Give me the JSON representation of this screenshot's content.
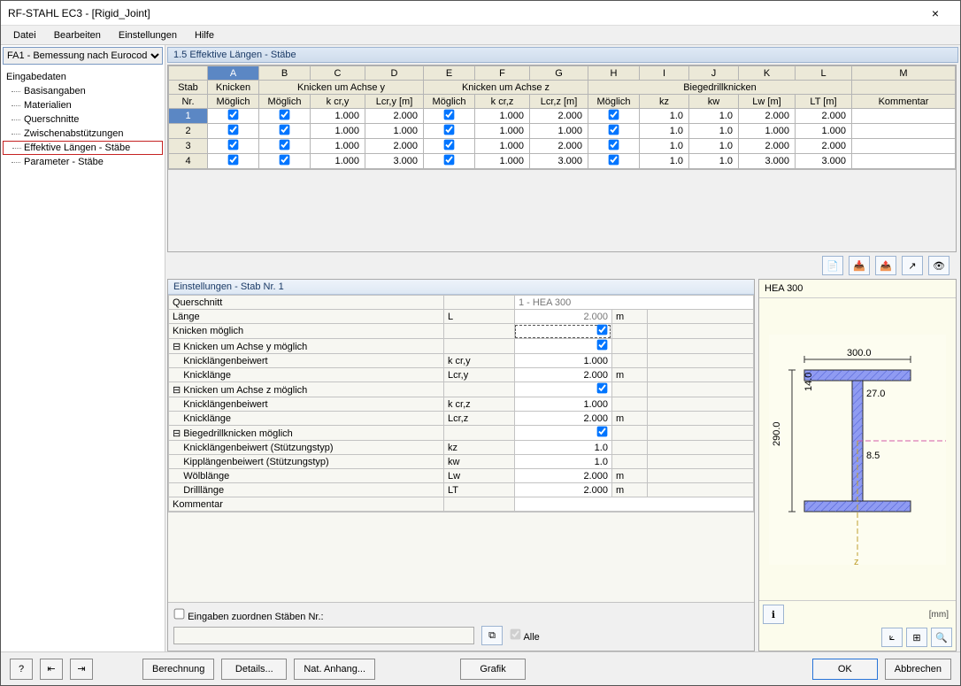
{
  "window": {
    "title": "RF-STAHL EC3 - [Rigid_Joint]"
  },
  "menu": {
    "items": [
      "Datei",
      "Bearbeiten",
      "Einstellungen",
      "Hilfe"
    ]
  },
  "sidebar": {
    "combo": "FA1 - Bemessung nach Eurocod",
    "root": "Eingabedaten",
    "items": [
      "Basisangaben",
      "Materialien",
      "Querschnitte",
      "Zwischenabstützungen",
      "Effektive Längen - Stäbe",
      "Parameter - Stäbe"
    ],
    "selected_index": 4
  },
  "section_title": "1.5 Effektive Längen - Stäbe",
  "grid": {
    "letter_cols": [
      "A",
      "B",
      "C",
      "D",
      "E",
      "F",
      "G",
      "H",
      "I",
      "J",
      "K",
      "L",
      "M"
    ],
    "group_headers": {
      "stab": "Stab",
      "knicken": "Knicken",
      "achse_y": "Knicken um Achse y",
      "achse_z": "Knicken um Achse z",
      "biegedrill": "Biegedrillknicken"
    },
    "sub_headers": {
      "nr": "Nr.",
      "moeglich": "Möglich",
      "kcry": "k cr,y",
      "lcry": "Lcr,y [m]",
      "kcrz": "k cr,z",
      "lcrz": "Lcr,z [m]",
      "kz": "kz",
      "kw": "kw",
      "lw": "Lw [m]",
      "lt": "LT [m]",
      "kommentar": "Kommentar"
    },
    "rows": [
      {
        "nr": 1,
        "a": true,
        "b": true,
        "c": "1.000",
        "d": "2.000",
        "e": true,
        "f": "1.000",
        "g": "2.000",
        "h": true,
        "i": "1.0",
        "j": "1.0",
        "k": "2.000",
        "l": "2.000",
        "m": "",
        "sel": true
      },
      {
        "nr": 2,
        "a": true,
        "b": true,
        "c": "1.000",
        "d": "1.000",
        "e": true,
        "f": "1.000",
        "g": "1.000",
        "h": true,
        "i": "1.0",
        "j": "1.0",
        "k": "1.000",
        "l": "1.000",
        "m": ""
      },
      {
        "nr": 3,
        "a": true,
        "b": true,
        "c": "1.000",
        "d": "2.000",
        "e": true,
        "f": "1.000",
        "g": "2.000",
        "h": true,
        "i": "1.0",
        "j": "1.0",
        "k": "2.000",
        "l": "2.000",
        "m": ""
      },
      {
        "nr": 4,
        "a": true,
        "b": true,
        "c": "1.000",
        "d": "3.000",
        "e": true,
        "f": "1.000",
        "g": "3.000",
        "h": true,
        "i": "1.0",
        "j": "1.0",
        "k": "3.000",
        "l": "3.000",
        "m": ""
      }
    ]
  },
  "details": {
    "title": "Einstellungen - Stab Nr. 1",
    "rows": [
      {
        "type": "kv",
        "label": "Querschnitt",
        "sym": "",
        "val": "1 - HEA 300",
        "unit": "",
        "ro": true,
        "wide": true
      },
      {
        "type": "kv",
        "label": "Länge",
        "sym": "L",
        "val": "2.000",
        "unit": "m",
        "ro": true
      },
      {
        "type": "chk",
        "label": "Knicken möglich",
        "checked": true,
        "dashed": true
      },
      {
        "type": "grp",
        "label": "Knicken um Achse y möglich",
        "checked": true
      },
      {
        "type": "kv",
        "label": "Knicklängenbeiwert",
        "sym": "k cr,y",
        "val": "1.000",
        "unit": "",
        "indent": true
      },
      {
        "type": "kv",
        "label": "Knicklänge",
        "sym": "Lcr,y",
        "val": "2.000",
        "unit": "m",
        "indent": true
      },
      {
        "type": "grp",
        "label": "Knicken um Achse z möglich",
        "checked": true
      },
      {
        "type": "kv",
        "label": "Knicklängenbeiwert",
        "sym": "k cr,z",
        "val": "1.000",
        "unit": "",
        "indent": true
      },
      {
        "type": "kv",
        "label": "Knicklänge",
        "sym": "Lcr,z",
        "val": "2.000",
        "unit": "m",
        "indent": true
      },
      {
        "type": "grp",
        "label": "Biegedrillknicken möglich",
        "checked": true
      },
      {
        "type": "kv",
        "label": "Knicklängenbeiwert (Stützungstyp)",
        "sym": "kz",
        "val": "1.0",
        "unit": "",
        "indent": true
      },
      {
        "type": "kv",
        "label": "Kipplängenbeiwert (Stützungstyp)",
        "sym": "kw",
        "val": "1.0",
        "unit": "",
        "indent": true
      },
      {
        "type": "kv",
        "label": "Wölblänge",
        "sym": "Lw",
        "val": "2.000",
        "unit": "m",
        "indent": true
      },
      {
        "type": "kv",
        "label": "Drilllänge",
        "sym": "LT",
        "val": "2.000",
        "unit": "m",
        "indent": true
      },
      {
        "type": "kv",
        "label": "Kommentar",
        "sym": "",
        "val": "",
        "unit": "",
        "wide": true
      }
    ],
    "assign_label": "Eingaben zuordnen Stäben Nr.:",
    "alle": "Alle"
  },
  "profile": {
    "title": "HEA 300",
    "unit_label": "[mm]",
    "dims": {
      "width": "300.0",
      "height": "290.0",
      "tf": "14.0",
      "tw": "8.5",
      "r": "27.0"
    },
    "colors": {
      "fill": "#8f9bf2",
      "hatch": "#4a5ad2",
      "outline": "#2b2b2b",
      "axis_y": "#d45aa8",
      "axis_z": "#c0a030",
      "bg": "#fdfdf0"
    }
  },
  "footer": {
    "berechnung": "Berechnung",
    "details": "Details...",
    "nat": "Nat. Anhang...",
    "grafik": "Grafik",
    "ok": "OK",
    "abbrechen": "Abbrechen"
  }
}
